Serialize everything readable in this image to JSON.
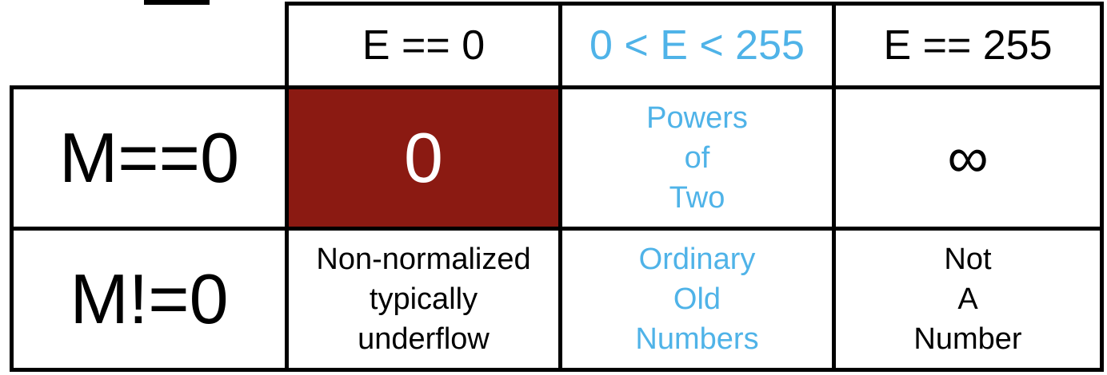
{
  "colors": {
    "accent": "#4fb3e8",
    "zero_cell_bg": "#8b1a12",
    "zero_cell_text": "#ffffff",
    "border": "#000000"
  },
  "columns": [
    {
      "label": "E == 0"
    },
    {
      "label": "0 < E < 255"
    },
    {
      "label": "E == 255"
    }
  ],
  "rows": [
    {
      "label": "M==0",
      "cells": [
        {
          "lines": [
            "0"
          ]
        },
        {
          "lines": [
            "Powers",
            "of",
            "Two"
          ]
        },
        {
          "lines": [
            "∞"
          ]
        }
      ]
    },
    {
      "label": "M!=0",
      "cells": [
        {
          "lines": [
            "Non-normalized",
            "typically",
            "underflow"
          ]
        },
        {
          "lines": [
            "Ordinary",
            "Old",
            "Numbers"
          ]
        },
        {
          "lines": [
            "Not",
            "A",
            "Number"
          ]
        }
      ]
    }
  ]
}
